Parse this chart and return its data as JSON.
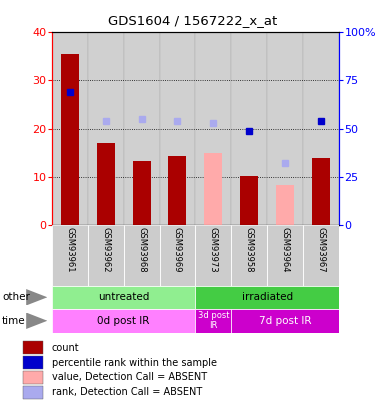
{
  "title": "GDS1604 / 1567222_x_at",
  "samples": [
    "GSM93961",
    "GSM93962",
    "GSM93968",
    "GSM93969",
    "GSM93973",
    "GSM93958",
    "GSM93964",
    "GSM93967"
  ],
  "count_present": [
    35.5,
    17.0,
    13.2,
    14.2,
    null,
    10.2,
    null,
    13.8
  ],
  "count_absent": [
    null,
    null,
    null,
    null,
    15.0,
    null,
    8.2,
    null
  ],
  "rank_present": [
    69.0,
    null,
    null,
    null,
    null,
    49.0,
    null,
    54.0
  ],
  "rank_absent": [
    null,
    54.0,
    55.0,
    54.0,
    53.0,
    null,
    32.0,
    null
  ],
  "ylim_left": [
    0,
    40
  ],
  "ylim_right": [
    0,
    100
  ],
  "yticks_left": [
    0,
    10,
    20,
    30,
    40
  ],
  "yticks_right": [
    0,
    25,
    50,
    75,
    100
  ],
  "yticklabels_right": [
    "0",
    "25",
    "50",
    "75",
    "100%"
  ],
  "groups_other": [
    {
      "label": "untreated",
      "start": 0,
      "end": 4,
      "color": "#90ee90"
    },
    {
      "label": "irradiated",
      "start": 4,
      "end": 8,
      "color": "#44cc44"
    }
  ],
  "groups_time": [
    {
      "label": "0d post IR",
      "start": 0,
      "end": 4,
      "color": "#ff80ff"
    },
    {
      "label": "3d post\nIR",
      "start": 4,
      "end": 5,
      "color": "#cc00cc"
    },
    {
      "label": "7d post IR",
      "start": 5,
      "end": 8,
      "color": "#cc00cc"
    }
  ],
  "bar_color_present": "#aa0000",
  "bar_color_absent": "#ffaaaa",
  "rank_color_present": "#0000cc",
  "rank_color_absent": "#aaaaee",
  "col_bg": "#d0d0d0",
  "legend_items": [
    {
      "label": "count",
      "color": "#aa0000"
    },
    {
      "label": "percentile rank within the sample",
      "color": "#0000cc"
    },
    {
      "label": "value, Detection Call = ABSENT",
      "color": "#ffaaaa"
    },
    {
      "label": "rank, Detection Call = ABSENT",
      "color": "#aaaaee"
    }
  ]
}
